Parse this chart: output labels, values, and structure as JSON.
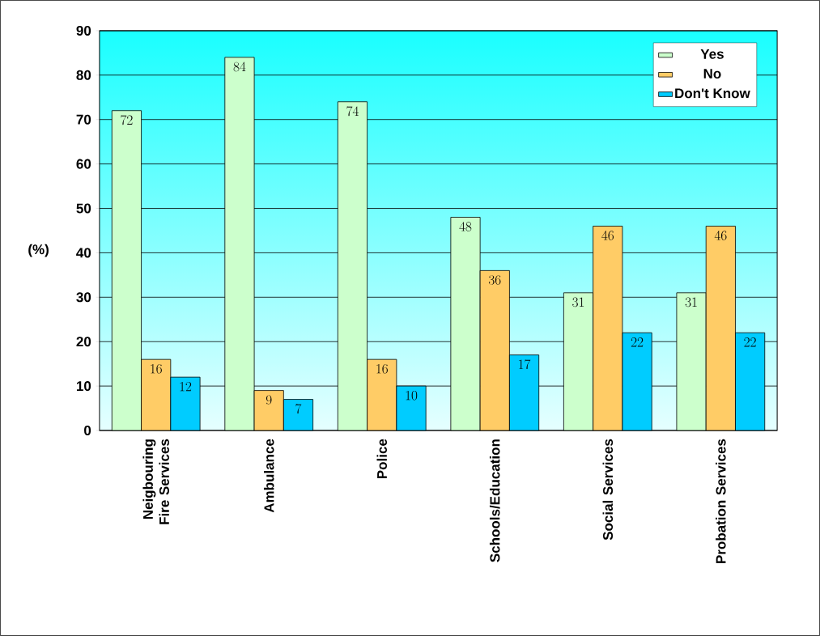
{
  "chart_data": {
    "type": "bar",
    "ylabel": "(%)",
    "categories": [
      "Neigbouring Fire Services",
      "Ambulance",
      "Police",
      "Schools/Education",
      "Social Services",
      "Probation Services"
    ],
    "series": [
      {
        "name": "Yes",
        "color": "#ccffcc",
        "values": [
          72,
          84,
          74,
          48,
          31,
          31
        ]
      },
      {
        "name": "No",
        "color": "#ffcc66",
        "values": [
          16,
          9,
          16,
          36,
          46,
          46
        ]
      },
      {
        "name": "Don't Know",
        "color": "#00ccff",
        "values": [
          12,
          7,
          10,
          17,
          22,
          22
        ]
      }
    ],
    "ylim": [
      0,
      90
    ],
    "yticks": [
      0,
      10,
      20,
      30,
      40,
      50,
      60,
      70,
      80,
      90
    ],
    "grid": "y",
    "legend": "top right",
    "data_labels": true
  }
}
